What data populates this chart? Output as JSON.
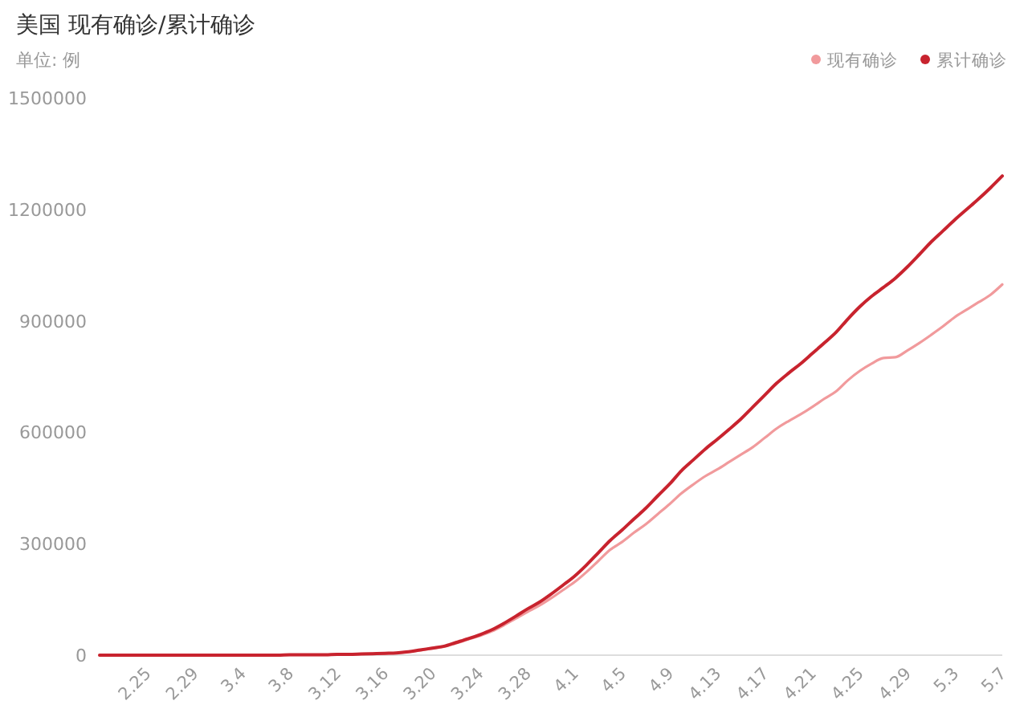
{
  "chart_data": {
    "type": "line",
    "title": "美国 现有确诊/累计确诊",
    "subtitle": "单位: 例",
    "categories": [
      null,
      null,
      null,
      null,
      "2.25",
      null,
      null,
      null,
      "2.29",
      null,
      null,
      null,
      "3.4",
      null,
      null,
      null,
      "3.8",
      null,
      null,
      null,
      "3.12",
      null,
      null,
      null,
      "3.16",
      null,
      null,
      null,
      "3.20",
      null,
      null,
      null,
      "3.24",
      null,
      null,
      null,
      "3.28",
      null,
      null,
      null,
      "4.1",
      null,
      null,
      null,
      "4.5",
      null,
      null,
      null,
      "4.9",
      null,
      null,
      null,
      "4.13",
      null,
      null,
      null,
      "4.17",
      null,
      null,
      null,
      "4.21",
      null,
      null,
      null,
      "4.25",
      null,
      null,
      null,
      "4.29",
      null,
      null,
      null,
      "5.3",
      null,
      null,
      null,
      "5.7"
    ],
    "series": [
      {
        "name": "现有确诊",
        "color": "#f19a9c",
        "values": [
          0,
          0,
          0,
          0,
          0,
          0,
          0,
          0,
          0,
          0,
          0,
          0,
          0,
          0,
          0,
          0,
          1000,
          1000,
          1000,
          1000,
          2000,
          2000,
          3000,
          4000,
          4000,
          6000,
          9000,
          13000,
          18000,
          23000,
          32000,
          42000,
          52000,
          64000,
          80000,
          98000,
          116000,
          133000,
          153000,
          175000,
          197000,
          224000,
          254000,
          284000,
          305000,
          330000,
          353000,
          380000,
          407000,
          436000,
          460000,
          482000,
          500000,
          520000,
          540000,
          560000,
          585000,
          610000,
          630000,
          648000,
          668000,
          690000,
          710000,
          740000,
          765000,
          785000,
          800000,
          802000,
          820000,
          840000,
          862000,
          885000,
          910000,
          930000,
          950000,
          970000,
          998000
        ]
      },
      {
        "name": "累计确诊",
        "color": "#c8232e",
        "values": [
          0,
          0,
          0,
          0,
          0,
          0,
          0,
          0,
          0,
          0,
          0,
          0,
          0,
          0,
          0,
          0,
          1000,
          1000,
          1000,
          1000,
          2000,
          2000,
          3000,
          4000,
          5000,
          6000,
          9000,
          14000,
          19000,
          24000,
          34000,
          44000,
          55000,
          68000,
          85000,
          104000,
          124000,
          142000,
          164000,
          188000,
          213000,
          243000,
          276000,
          309000,
          337000,
          367000,
          396000,
          429000,
          461000,
          497000,
          526000,
          555000,
          581000,
          608000,
          636000,
          668000,
          700000,
          732000,
          759000,
          784000,
          812000,
          840000,
          869000,
          905000,
          938000,
          966000,
          990000,
          1015000,
          1045000,
          1078000,
          1112000,
          1142000,
          1172000,
          1200000,
          1228000,
          1258000,
          1290000
        ]
      }
    ],
    "ylim": [
      0,
      1500000
    ],
    "yticks": [
      0,
      300000,
      600000,
      900000,
      1200000,
      1500000
    ],
    "grid": false,
    "legend": "top right",
    "marker": "none",
    "line_style": "solid"
  }
}
